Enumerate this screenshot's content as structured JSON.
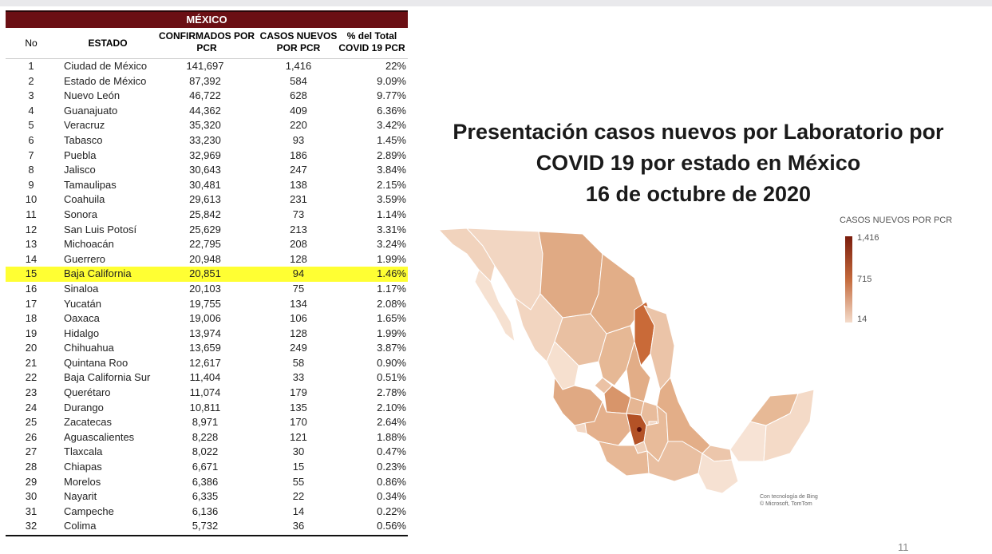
{
  "table": {
    "banner": "MÉXICO",
    "headers": {
      "no": "No",
      "estado": "ESTADO",
      "confirmados_line1": "CONFIRMADOS POR",
      "confirmados_line2": "PCR",
      "nuevos_line1": "CASOS NUEVOS",
      "nuevos_line2": "POR PCR",
      "pct_line1": "% del Total",
      "pct_line2": "COVID 19 PCR"
    },
    "highlight_color": "#ffff33",
    "rows": [
      {
        "no": "1",
        "estado": "Ciudad de México",
        "confirmados": "141,697",
        "nuevos": "1,416",
        "pct": "22%"
      },
      {
        "no": "2",
        "estado": "Estado de México",
        "confirmados": "87,392",
        "nuevos": "584",
        "pct": "9.09%"
      },
      {
        "no": "3",
        "estado": "Nuevo León",
        "confirmados": "46,722",
        "nuevos": "628",
        "pct": "9.77%"
      },
      {
        "no": "4",
        "estado": "Guanajuato",
        "confirmados": "44,362",
        "nuevos": "409",
        "pct": "6.36%"
      },
      {
        "no": "5",
        "estado": "Veracruz",
        "confirmados": "35,320",
        "nuevos": "220",
        "pct": "3.42%"
      },
      {
        "no": "6",
        "estado": "Tabasco",
        "confirmados": "33,230",
        "nuevos": "93",
        "pct": "1.45%"
      },
      {
        "no": "7",
        "estado": "Puebla",
        "confirmados": "32,969",
        "nuevos": "186",
        "pct": "2.89%"
      },
      {
        "no": "8",
        "estado": "Jalisco",
        "confirmados": "30,643",
        "nuevos": "247",
        "pct": "3.84%"
      },
      {
        "no": "9",
        "estado": "Tamaulipas",
        "confirmados": "30,481",
        "nuevos": "138",
        "pct": "2.15%"
      },
      {
        "no": "10",
        "estado": "Coahuila",
        "confirmados": "29,613",
        "nuevos": "231",
        "pct": "3.59%"
      },
      {
        "no": "11",
        "estado": "Sonora",
        "confirmados": "25,842",
        "nuevos": "73",
        "pct": "1.14%"
      },
      {
        "no": "12",
        "estado": "San Luis Potosí",
        "confirmados": "25,629",
        "nuevos": "213",
        "pct": "3.31%"
      },
      {
        "no": "13",
        "estado": "Michoacán",
        "confirmados": "22,795",
        "nuevos": "208",
        "pct": "3.24%"
      },
      {
        "no": "14",
        "estado": "Guerrero",
        "confirmados": "20,948",
        "nuevos": "128",
        "pct": "1.99%"
      },
      {
        "no": "15",
        "estado": "Baja California",
        "confirmados": "20,851",
        "nuevos": "94",
        "pct": "1.46%",
        "highlight": true
      },
      {
        "no": "16",
        "estado": "Sinaloa",
        "confirmados": "20,103",
        "nuevos": "75",
        "pct": "1.17%"
      },
      {
        "no": "17",
        "estado": "Yucatán",
        "confirmados": "19,755",
        "nuevos": "134",
        "pct": "2.08%"
      },
      {
        "no": "18",
        "estado": "Oaxaca",
        "confirmados": "19,006",
        "nuevos": "106",
        "pct": "1.65%"
      },
      {
        "no": "19",
        "estado": "Hidalgo",
        "confirmados": "13,974",
        "nuevos": "128",
        "pct": "1.99%"
      },
      {
        "no": "20",
        "estado": "Chihuahua",
        "confirmados": "13,659",
        "nuevos": "249",
        "pct": "3.87%"
      },
      {
        "no": "21",
        "estado": "Quintana Roo",
        "confirmados": "12,617",
        "nuevos": "58",
        "pct": "0.90%"
      },
      {
        "no": "22",
        "estado": "Baja California Sur",
        "confirmados": "11,404",
        "nuevos": "33",
        "pct": "0.51%"
      },
      {
        "no": "23",
        "estado": "Querétaro",
        "confirmados": "11,074",
        "nuevos": "179",
        "pct": "2.78%"
      },
      {
        "no": "24",
        "estado": "Durango",
        "confirmados": "10,811",
        "nuevos": "135",
        "pct": "2.10%"
      },
      {
        "no": "25",
        "estado": "Zacatecas",
        "confirmados": "8,971",
        "nuevos": "170",
        "pct": "2.64%"
      },
      {
        "no": "26",
        "estado": "Aguascalientes",
        "confirmados": "8,228",
        "nuevos": "121",
        "pct": "1.88%"
      },
      {
        "no": "27",
        "estado": "Tlaxcala",
        "confirmados": "8,022",
        "nuevos": "30",
        "pct": "0.47%"
      },
      {
        "no": "28",
        "estado": "Chiapas",
        "confirmados": "6,671",
        "nuevos": "15",
        "pct": "0.23%"
      },
      {
        "no": "29",
        "estado": "Morelos",
        "confirmados": "6,386",
        "nuevos": "55",
        "pct": "0.86%"
      },
      {
        "no": "30",
        "estado": "Nayarit",
        "confirmados": "6,335",
        "nuevos": "22",
        "pct": "0.34%"
      },
      {
        "no": "31",
        "estado": "Campeche",
        "confirmados": "6,136",
        "nuevos": "14",
        "pct": "0.22%"
      },
      {
        "no": "32",
        "estado": "Colima",
        "confirmados": "5,732",
        "nuevos": "36",
        "pct": "0.56%"
      }
    ]
  },
  "title": {
    "line1": "Presentación casos nuevos por Laboratorio por",
    "line2": "COVID 19 por estado en México",
    "line3": "16 de octubre de 2020"
  },
  "legend": {
    "title": "CASOS NUEVOS POR PCR",
    "max": "1,416",
    "mid": "715",
    "min": "14",
    "color_max": "#7a1c0c",
    "color_min": "#f4dccb"
  },
  "map": {
    "attribution_line1": "Con tecnología de Bing",
    "attribution_line2": "© Microsoft, TomTom"
  },
  "page_number": "11"
}
